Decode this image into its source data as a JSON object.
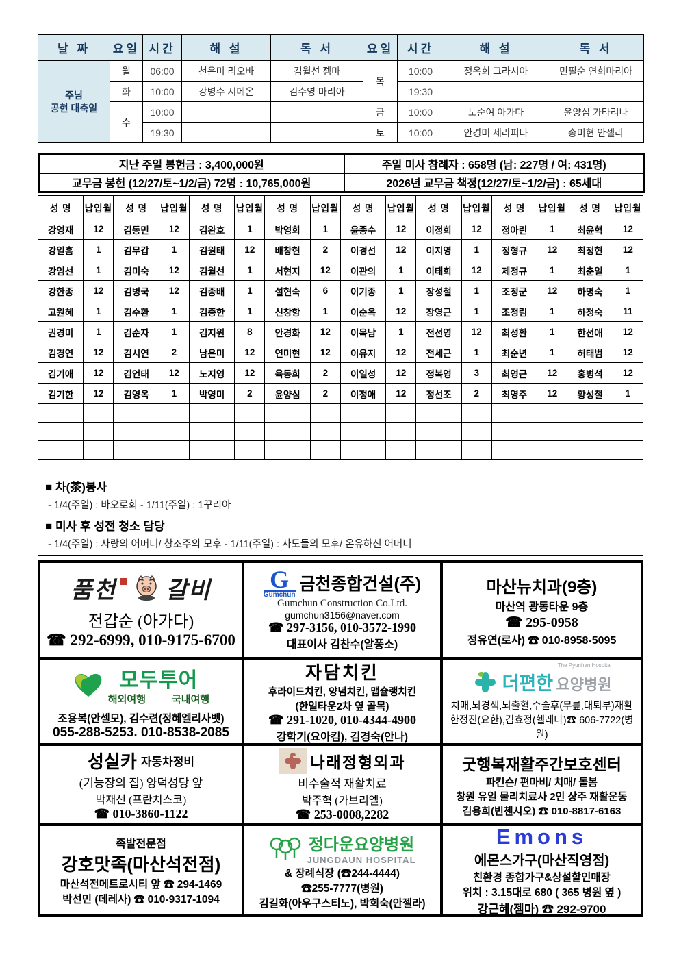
{
  "schedule": {
    "headers": {
      "date": "날 짜",
      "day": "요일",
      "time": "시간",
      "commentator": "해 설",
      "reader": "독 서"
    },
    "feast_line1": "주님",
    "feast_line2": "공현 대축일",
    "mon": {
      "day": "월",
      "time": "06:00",
      "commentator": "천은미 리오바",
      "reader": "김월선 젬마"
    },
    "tue": {
      "day": "화",
      "time": "10:00",
      "commentator": "강병수 시메온",
      "reader": "김수영 마리아"
    },
    "wed": {
      "day": "수",
      "time1": "10:00",
      "time2": "19:30"
    },
    "thu": {
      "day": "목",
      "time1": "10:00",
      "commentator1": "정옥희 그라시아",
      "reader1": "민필순 연희마리아",
      "time2": "19:30"
    },
    "fri": {
      "day": "금",
      "time": "10:00",
      "commentator": "노순여 아가다",
      "reader": "윤양심 가타리나"
    },
    "sat": {
      "day": "토",
      "time": "10:00",
      "commentator": "안경미 세라피나",
      "reader": "송미현 안젤라"
    }
  },
  "summary": {
    "offering": "지난 주일 봉헌금 : 3,400,000원",
    "attendance": "주일 미사 참례자 : 658명 (남: 227명 / 여: 431명)",
    "dues_offering": "교무금 봉헌 (12/27/토~1/2/금) 72명 : 10,765,000원",
    "dues_pledge": "2026년 교무금 책정(12/27/토~1/2/금) : 65세대"
  },
  "dues_table": {
    "name_header": "성 명",
    "month_header": "납입월",
    "pair_count": 8,
    "empty_row_count": 3,
    "rows": [
      [
        "강영재",
        "12",
        "김동민",
        "12",
        "김완호",
        "1",
        "박영희",
        "1",
        "윤종수",
        "12",
        "이정희",
        "12",
        "정아린",
        "1",
        "최윤혁",
        "12"
      ],
      [
        "강일흠",
        "1",
        "김무갑",
        "1",
        "김원태",
        "12",
        "배창현",
        "2",
        "이경선",
        "12",
        "이지영",
        "1",
        "정형규",
        "12",
        "최정현",
        "12"
      ],
      [
        "강임선",
        "1",
        "김미숙",
        "12",
        "김월선",
        "1",
        "서현지",
        "12",
        "이관의",
        "1",
        "이태희",
        "12",
        "제정규",
        "1",
        "최춘일",
        "1"
      ],
      [
        "강한종",
        "12",
        "김병국",
        "12",
        "김종배",
        "1",
        "설현숙",
        "6",
        "이기종",
        "1",
        "장성철",
        "1",
        "조정군",
        "12",
        "하명숙",
        "1"
      ],
      [
        "고원혜",
        "1",
        "김수환",
        "1",
        "김종한",
        "1",
        "신창항",
        "1",
        "이순옥",
        "12",
        "장영근",
        "1",
        "조정림",
        "1",
        "하정숙",
        "11"
      ],
      [
        "권경미",
        "1",
        "김순자",
        "1",
        "김지원",
        "8",
        "안경화",
        "12",
        "이옥남",
        "1",
        "전선영",
        "12",
        "최성환",
        "1",
        "한선애",
        "12"
      ],
      [
        "김경연",
        "12",
        "김시연",
        "2",
        "남은미",
        "12",
        "연미현",
        "12",
        "이유지",
        "12",
        "전세근",
        "1",
        "최순년",
        "1",
        "허태범",
        "12"
      ],
      [
        "김기애",
        "12",
        "김언태",
        "12",
        "노지영",
        "12",
        "육동희",
        "2",
        "이일성",
        "12",
        "정복영",
        "3",
        "최영근",
        "12",
        "홍병석",
        "12"
      ],
      [
        "김기한",
        "12",
        "김영옥",
        "1",
        "박영미",
        "2",
        "윤양심",
        "2",
        "이정애",
        "12",
        "정선조",
        "2",
        "최영주",
        "12",
        "황성철",
        "1"
      ]
    ]
  },
  "notices": {
    "tea_title": "■ 차(茶)봉사",
    "tea_line": "- 1/4(주일) : 바오로회  - 1/11(주일) : 1꾸리아",
    "clean_title": "■ 미사 후 성전 청소 담당",
    "clean_line": "- 1/4(주일) : 사랑의 어머니/ 창조주의 모후   - 1/11(주일) : 사도들의 모후/ 온유하신 어머니"
  },
  "ads": {
    "galbi": {
      "logo_left": "품천",
      "logo_right": "갈비",
      "name": "전갑순 (아가다)",
      "phone": "☎ 292-6999, 010-9175-6700"
    },
    "gumchun": {
      "logo_g": "G",
      "logo_sub": "Gumchun",
      "title": "금천종합건설(주)",
      "eng": "Gumchun Construction Co.Ltd.",
      "email": "gumchun3156@naver.com",
      "phone": "☎ 297-3156, 010-3572-1990",
      "ceo": "대표이사 김찬수(알퐁소)"
    },
    "dental": {
      "title": "마산뉴치과(9층)",
      "addr": "마산역 광동타운 9층",
      "phone": "☎ 295-0958",
      "contact": "정유연(로사) ☎ 010-8958-5095"
    },
    "modetour": {
      "logo": "모두투어",
      "sub1": "해외여행",
      "sub2": "국내여행",
      "names": "조용복(안셀모), 김수련(정혜엘리사벳)",
      "phone": "055-288-5253.  010-8538-2085"
    },
    "chicken": {
      "title": "자담치킨",
      "menu": "후라이드치킨, 양념치킨, 맵슐랭치킨",
      "loc": "(한일타운2차 옆 골목)",
      "phone": "☎ 291-1020, 010-4344-4900",
      "names": "강학기(요아킴), 김경숙(안나)"
    },
    "pyunhan": {
      "logo_main": "더편한",
      "logo_sub": "요양병원",
      "logo_eng": "The Pyunhan Hospital",
      "desc": "치매,뇌경색,뇌출혈,수술후(무릎,대퇴부)재활",
      "contact": "한정진(요한),김효정(헬레나)☎ 606-7722(병원)"
    },
    "sungsil": {
      "title": "성실카",
      "title_sub": "자동차정비",
      "line1": "(기능장의 집) 양덕성당 앞",
      "name": "박재선 (프란치스코)",
      "phone": "☎ 010-3860-1122"
    },
    "narae": {
      "title": "나래정형외과",
      "desc": "비수술적 재활치료",
      "name": "박주혁 (가브리엘)",
      "phone": "☎ 253-0008,2282"
    },
    "goodhappy": {
      "title": "굿행복재활주간보호센터",
      "line1": "파킨슨/ 편마비/ 치매/ 돌봄",
      "line2": "창원 유일 물리치료사 2인 상주 재활운동",
      "contact": "김용희(빈첸시오) ☎ 010-8817-6163"
    },
    "jokbal": {
      "sub": "족발전문점",
      "title": "강호맛족(마산석전점)",
      "line1": "마산석전메트로시티 앞 ☎ 294-1469",
      "line2": "박선민 (데레사) ☎ 010-9317-1094"
    },
    "jungdaun": {
      "logo": "정다운요양병원",
      "eng": "JUNGDAUN HOSPITAL",
      "line1": "& 장례식장 (☎244-4444)",
      "line2": "☎255-7777(병원)",
      "line3": "김길화(아우구스티노), 박희숙(안젤라)"
    },
    "emons": {
      "logo": "Emons",
      "title": "에몬스가구(마산직영점)",
      "line1": "친환경 종합가구&상설할인매장",
      "line2": "위치 : 3.15대로 680 ( 365 병원 옆 )",
      "contact": "강근혜(젬마) ☎ 292-9700"
    }
  },
  "colors": {
    "header_bg": "#d8eaf0",
    "header_text": "#17375d",
    "gumchun_blue": "#1c56c8",
    "modetour_green": "#149a4c",
    "pyunhan_teal": "#2ab3b8",
    "pyunhan_gray": "#9aa0a6",
    "jungdaun_green": "#27a148",
    "emons_blue": "#2a3bd6",
    "narae_red": "#b5655a",
    "seal_red": "#c0392b"
  }
}
